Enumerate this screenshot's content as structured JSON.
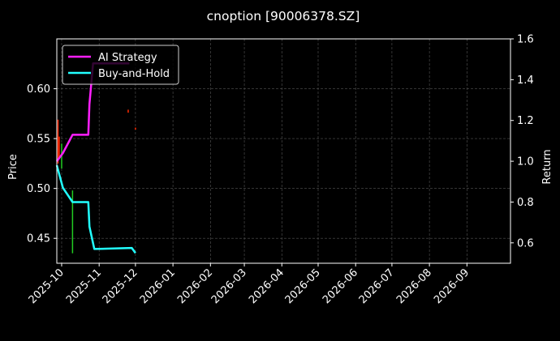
{
  "chart_data": {
    "type": "line",
    "title": "cnoption [90006378.SZ]",
    "ylabel": "Price",
    "ylabel_right": "Return",
    "xlim": [
      "2025-09-27",
      "2026-10-07"
    ],
    "ylim": [
      0.425,
      0.65
    ],
    "ylim_right": [
      0.5,
      1.6
    ],
    "grid": true,
    "legend": "top-left",
    "x_ticks": [
      "2025-10",
      "2025-11",
      "2025-12",
      "2026-01",
      "2026-02",
      "2026-03",
      "2026-04",
      "2026-05",
      "2026-06",
      "2026-07",
      "2026-08",
      "2026-09"
    ],
    "x_tick_dates": [
      "2025-10-01",
      "2025-11-01",
      "2025-12-01",
      "2026-01-01",
      "2026-02-01",
      "2026-03-01",
      "2026-04-01",
      "2026-05-01",
      "2026-06-01",
      "2026-07-01",
      "2026-08-01",
      "2026-09-01"
    ],
    "y_ticks": [
      "0.45",
      "0.50",
      "0.55",
      "0.60"
    ],
    "y_tick_values": [
      0.45,
      0.5,
      0.55,
      0.6
    ],
    "y_ticks_right": [
      "0.6",
      "0.8",
      "1.0",
      "1.2",
      "1.4",
      "1.6"
    ],
    "y_tick_values_right": [
      0.6,
      0.8,
      1.0,
      1.2,
      1.4,
      1.6
    ],
    "series": [
      {
        "name": "AI Strategy",
        "axis": "right",
        "color": "#ff1fff",
        "x": [
          "2025-09-27",
          "2025-10-02",
          "2025-10-10",
          "2025-10-23",
          "2025-10-24",
          "2025-10-27",
          "2025-11-26"
        ],
        "y": [
          1.0,
          1.04,
          1.13,
          1.13,
          1.28,
          1.48,
          1.48
        ]
      },
      {
        "name": "Buy-and-Hold",
        "axis": "right",
        "color": "#22ffff",
        "x": [
          "2025-09-27",
          "2025-10-02",
          "2025-10-10",
          "2025-10-23",
          "2025-10-24",
          "2025-10-28",
          "2025-11-28",
          "2025-12-01"
        ],
        "y": [
          0.98,
          0.87,
          0.8,
          0.8,
          0.68,
          0.57,
          0.575,
          0.55
        ]
      }
    ],
    "price_bars": [
      {
        "date": "2025-09-28",
        "low": 0.525,
        "high": 0.569,
        "color": "#ff2a00"
      },
      {
        "date": "2025-09-29",
        "low": 0.531,
        "high": 0.552,
        "color": "#ff2a00"
      },
      {
        "date": "2025-10-01",
        "low": 0.52,
        "high": 0.545,
        "color": "#22cc22"
      },
      {
        "date": "2025-10-10",
        "low": 0.435,
        "high": 0.498,
        "color": "#22cc22"
      },
      {
        "date": "2025-11-25",
        "low": 0.576,
        "high": 0.579,
        "color": "#ff2a00"
      },
      {
        "date": "2025-12-01",
        "low": 0.559,
        "high": 0.561,
        "color": "#ff2a00"
      }
    ]
  }
}
